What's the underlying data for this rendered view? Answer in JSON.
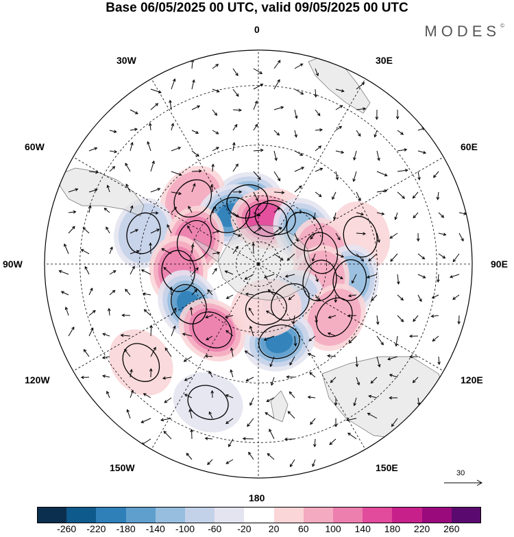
{
  "title": "Base 06/05/2025 00 UTC, valid 09/05/2025 00 UTC",
  "brand": "MODES",
  "brand_mark": "©",
  "longitude_labels": {
    "lon_0": "0",
    "lon_30e": "30E",
    "lon_60e": "60E",
    "lon_90e": "90E",
    "lon_120e": "120E",
    "lon_150e": "150E",
    "lon_180": "180",
    "lon_150w": "150W",
    "lon_120w": "120W",
    "lon_90w": "90W",
    "lon_60w": "60W",
    "lon_30w": "30W"
  },
  "reference_vector": {
    "label": "30"
  },
  "colorbar": {
    "colors": [
      "#0b2f4e",
      "#0f5a8c",
      "#2f7fb8",
      "#5f9fcd",
      "#97bedf",
      "#c4d2e9",
      "#e4e4f1",
      "#ffffff",
      "#fad6d8",
      "#f4aac0",
      "#ec7fae",
      "#e24a9c",
      "#c7208a",
      "#9a0a7d",
      "#5a0a6e"
    ],
    "tick_labels": [
      "-260",
      "-220",
      "-180",
      "-140",
      "-100",
      "-60",
      "-20",
      "20",
      "60",
      "100",
      "140",
      "180",
      "220",
      "260"
    ]
  },
  "anomaly_centers": [
    {
      "lon": -10,
      "lat": -62,
      "value": -180
    },
    {
      "lon": 20,
      "lat": -68,
      "value": 60
    },
    {
      "lon": -45,
      "lat": -50,
      "value": 100
    },
    {
      "lon": -30,
      "lat": -65,
      "value": -220
    },
    {
      "lon": 10,
      "lat": -70,
      "value": 180
    },
    {
      "lon": -75,
      "lat": -40,
      "value": -100
    },
    {
      "lon": -70,
      "lat": -60,
      "value": 140
    },
    {
      "lon": 55,
      "lat": -65,
      "value": -120
    },
    {
      "lon": 75,
      "lat": -45,
      "value": 60
    },
    {
      "lon": 80,
      "lat": -62,
      "value": 80
    },
    {
      "lon": -95,
      "lat": -55,
      "value": 140
    },
    {
      "lon": 100,
      "lat": -50,
      "value": -120
    },
    {
      "lon": 105,
      "lat": -62,
      "value": 100
    },
    {
      "lon": -120,
      "lat": -55,
      "value": -200
    },
    {
      "lon": 140,
      "lat": -68,
      "value": -100
    },
    {
      "lon": 125,
      "lat": -50,
      "value": 100
    },
    {
      "lon": -145,
      "lat": -55,
      "value": 140
    },
    {
      "lon": 165,
      "lat": -55,
      "value": -200
    },
    {
      "lon": 170,
      "lat": -70,
      "value": 60
    },
    {
      "lon": -160,
      "lat": -30,
      "value": -60
    },
    {
      "lon": -130,
      "lat": -28,
      "value": 40
    }
  ]
}
